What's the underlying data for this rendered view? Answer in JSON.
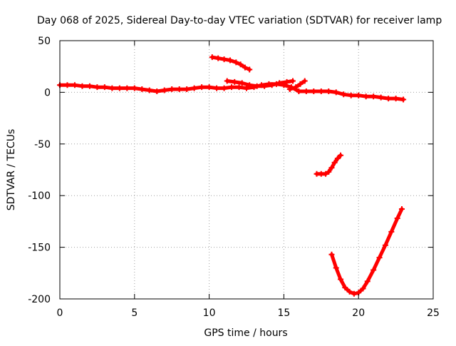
{
  "chart_data": {
    "type": "line",
    "title": "Day 068 of 2025, Sidereal Day-to-day VTEC variation (SDTVAR) for receiver lamp",
    "xlabel": "GPS time / hours",
    "ylabel": "SDTVAR / TECUs",
    "xlim": [
      0,
      25
    ],
    "ylim": [
      -200,
      50
    ],
    "xticks": [
      0,
      5,
      10,
      15,
      20,
      25
    ],
    "yticks": [
      -200,
      -150,
      -100,
      -50,
      0,
      50
    ],
    "grid": true,
    "legend": "none",
    "series_color": "#ff0000",
    "series": [
      {
        "name": "main",
        "x": [
          0.0,
          0.5,
          1.0,
          1.5,
          2.0,
          2.5,
          3.0,
          3.5,
          4.0,
          4.5,
          5.0,
          5.5,
          6.0,
          6.5,
          7.0,
          7.5,
          8.0,
          8.5,
          9.0,
          9.5,
          10.0,
          10.5,
          11.0,
          11.5,
          12.0,
          12.5,
          13.0,
          13.5,
          14.0,
          14.5,
          15.0,
          15.5,
          16.0,
          16.5,
          17.0,
          17.5,
          18.0,
          18.5,
          19.0,
          19.5,
          20.0,
          20.5,
          21.0,
          21.5,
          22.0,
          22.5,
          23.0
        ],
        "y": [
          7,
          7,
          7,
          6,
          6,
          5,
          5,
          4,
          4,
          4,
          4,
          3,
          2,
          1,
          2,
          3,
          3,
          3,
          4,
          5,
          5,
          4,
          4,
          5,
          5,
          4,
          5,
          7,
          8,
          8,
          7,
          5,
          1,
          1,
          1,
          1,
          1,
          0,
          -2,
          -3,
          -3,
          -4,
          -4,
          -5,
          -6,
          -6,
          -7
        ]
      },
      {
        "name": "arc-high",
        "x": [
          10.2,
          10.6,
          11.0,
          11.4,
          11.8,
          12.1,
          12.4,
          12.7
        ],
        "y": [
          34,
          33,
          32,
          31,
          29,
          27,
          24,
          22
        ]
      },
      {
        "name": "arc-mid",
        "x": [
          11.2,
          11.7,
          12.2,
          12.7,
          13.2,
          13.7,
          14.2,
          14.7,
          15.2,
          15.6
        ],
        "y": [
          11,
          10,
          9,
          7,
          6,
          6,
          7,
          9,
          10,
          11
        ]
      },
      {
        "name": "arc-late",
        "x": [
          15.4,
          15.8,
          16.1,
          16.4
        ],
        "y": [
          3,
          5,
          8,
          11
        ]
      },
      {
        "name": "arc-dip",
        "x": [
          17.2,
          17.5,
          17.8,
          18.0,
          18.2,
          18.4,
          18.6,
          18.8
        ],
        "y": [
          -79,
          -79,
          -79,
          -77,
          -73,
          -68,
          -64,
          -61
        ]
      },
      {
        "name": "arc-deep",
        "x": [
          18.2,
          18.5,
          18.8,
          19.1,
          19.4,
          19.7,
          20.0,
          20.3,
          20.6,
          21.0,
          21.4,
          21.8,
          22.2,
          22.6,
          22.9
        ],
        "y": [
          -157,
          -170,
          -181,
          -189,
          -193,
          -195,
          -194,
          -190,
          -183,
          -172,
          -160,
          -148,
          -135,
          -122,
          -113
        ]
      }
    ]
  }
}
